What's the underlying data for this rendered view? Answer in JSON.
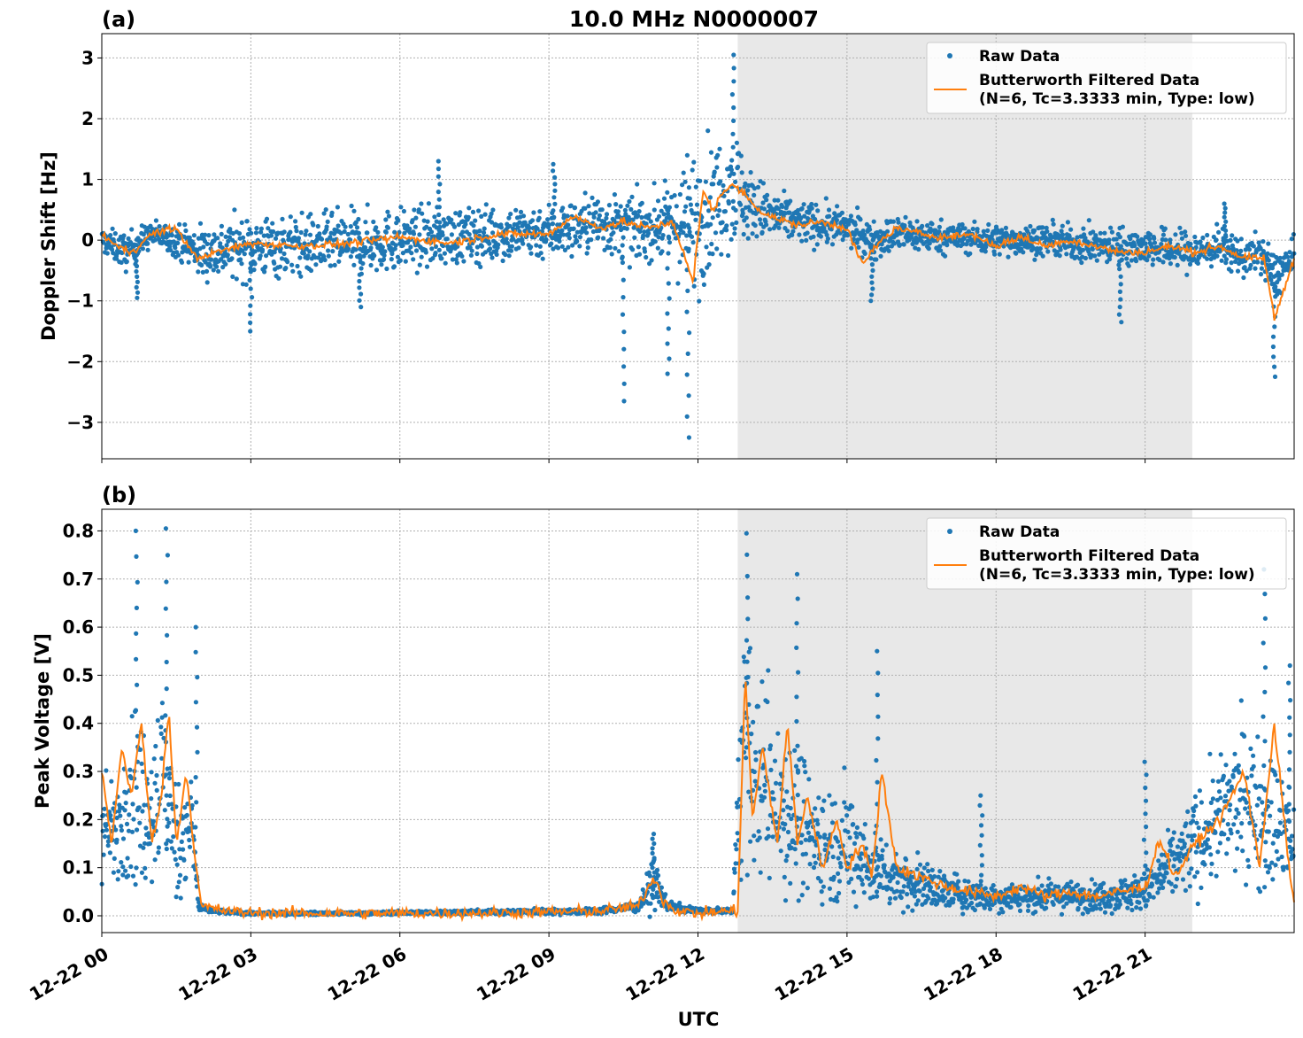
{
  "figure_title": "10.0 MHz N0000007",
  "xlabel": "UTC",
  "colors": {
    "raw": "#1f77b4",
    "filtered": "#ff7f0e",
    "shade": "#e8e8e8",
    "grid": "#b0b0b0"
  },
  "legend": {
    "raw": "Raw Data",
    "filtered_line1": "Butterworth Filtered Data",
    "filtered_line2": "(N=6, Tc=3.3333 min, Type: low)"
  },
  "x_tick_labels": [
    "12-22 00",
    "12-22 03",
    "12-22 06",
    "12-22 09",
    "12-22 12",
    "12-22 15",
    "12-22 18",
    "12-22 21"
  ],
  "chart_data": [
    {
      "type": "scatter",
      "panel": "(a)",
      "ylabel": "Doppler Shift [Hz]",
      "x_unit": "hours UTC on 12-22",
      "xlim": [
        0,
        24
      ],
      "ylim": [
        -3.6,
        3.4
      ],
      "yticks": [
        -3,
        -2,
        -1,
        0,
        1,
        2,
        3
      ],
      "ytick_labels": [
        "−3",
        "−2",
        "−1",
        "0",
        "1",
        "2",
        "3"
      ],
      "grid": true,
      "legend_position": "top-right",
      "shaded_interval": [
        12.8,
        21.95
      ],
      "series": [
        {
          "name": "Raw Data",
          "style": "points",
          "x": [
            0,
            0.25,
            0.5,
            1,
            1.5,
            2,
            3,
            4,
            5,
            6,
            7,
            8,
            9,
            9.5,
            10,
            10.5,
            11,
            11.5,
            11.8,
            12,
            12.3,
            12.5,
            12.75,
            13,
            13.5,
            14,
            15,
            15.5,
            16,
            17,
            18,
            19,
            20,
            21,
            22,
            22.5,
            23,
            23.3,
            23.6,
            24
          ],
          "y": [
            0,
            -0.1,
            -0.2,
            0.1,
            0,
            -0.2,
            -0.1,
            -0.1,
            -0.05,
            0,
            0.05,
            0.1,
            0.15,
            0.2,
            0.3,
            0.2,
            0.2,
            0.3,
            0.2,
            0.4,
            0.6,
            0.8,
            0.9,
            0.6,
            0.4,
            0.3,
            0.2,
            0,
            0.1,
            0.05,
            0,
            0,
            -0.1,
            -0.1,
            -0.2,
            -0.1,
            -0.3,
            -0.2,
            -0.6,
            -0.3
          ],
          "spread": [
            0.2,
            0.25,
            0.3,
            0.2,
            0.25,
            0.45,
            0.5,
            0.5,
            0.5,
            0.5,
            0.45,
            0.45,
            0.45,
            0.45,
            0.5,
            0.5,
            0.5,
            0.6,
            1.2,
            1.2,
            1,
            0.9,
            1,
            0.6,
            0.4,
            0.35,
            0.3,
            0.3,
            0.3,
            0.25,
            0.25,
            0.25,
            0.3,
            0.3,
            0.35,
            0.3,
            0.3,
            0.3,
            0.4,
            0.3
          ],
          "spikes": [
            [
              0.7,
              -0.95
            ],
            [
              3,
              -1.5
            ],
            [
              5.2,
              -1.1
            ],
            [
              6.8,
              1.3
            ],
            [
              9.1,
              1.25
            ],
            [
              10.5,
              -2.65
            ],
            [
              11.4,
              -2.2
            ],
            [
              11.8,
              -3.25
            ],
            [
              12.7,
              3.05
            ],
            [
              15.5,
              -1
            ],
            [
              20.5,
              -1.35
            ],
            [
              22.6,
              0.6
            ],
            [
              23.6,
              -2.25
            ]
          ]
        },
        {
          "name": "Butterworth Filtered Data\n(N=6, Tc=3.3333 min, Type: low)",
          "style": "line",
          "x": [
            0,
            0.3,
            0.6,
            1,
            1.5,
            1.9,
            2.3,
            3,
            4,
            5,
            6,
            7,
            8,
            9,
            9.5,
            10,
            10.5,
            11,
            11.5,
            11.9,
            12.1,
            12.3,
            12.5,
            12.75,
            13,
            13.3,
            13.6,
            14,
            14.5,
            15,
            15.3,
            15.7,
            16,
            16.5,
            17,
            17.5,
            18,
            18.5,
            19,
            19.5,
            20,
            20.5,
            21,
            21.5,
            22,
            22.5,
            23,
            23.4,
            23.6,
            24
          ],
          "y": [
            0.1,
            -0.1,
            -0.2,
            0.1,
            0.2,
            -0.3,
            -0.2,
            -0.05,
            -0.1,
            -0.05,
            0.05,
            -0.05,
            0.1,
            0.1,
            0.4,
            0.2,
            0.3,
            0.2,
            0.3,
            -0.7,
            0.8,
            0.5,
            0.8,
            0.9,
            0.7,
            0.45,
            0.35,
            0.25,
            0.3,
            0.2,
            -0.4,
            0,
            0.2,
            0.1,
            0.05,
            0.1,
            -0.1,
            0.05,
            -0.1,
            0,
            -0.1,
            -0.2,
            -0.2,
            -0.1,
            -0.2,
            -0.1,
            -0.3,
            -0.3,
            -1.3,
            -0.3
          ]
        }
      ]
    },
    {
      "type": "scatter",
      "panel": "(b)",
      "ylabel": "Peak Voltage [V]",
      "x_unit": "hours UTC on 12-22",
      "xlim": [
        0,
        24
      ],
      "ylim": [
        -0.035,
        0.845
      ],
      "yticks": [
        0.0,
        0.1,
        0.2,
        0.3,
        0.4,
        0.5,
        0.6,
        0.7,
        0.8
      ],
      "ytick_labels": [
        "0.0",
        "0.1",
        "0.2",
        "0.3",
        "0.4",
        "0.5",
        "0.6",
        "0.7",
        "0.8"
      ],
      "grid": true,
      "legend_position": "top-right",
      "shaded_interval": [
        12.8,
        21.95
      ],
      "series": [
        {
          "name": "Raw Data",
          "style": "points",
          "x": [
            0,
            0.3,
            0.6,
            0.9,
            1.2,
            1.5,
            1.8,
            1.95,
            2.2,
            3,
            5,
            8,
            10,
            10.8,
            11.1,
            11.4,
            12,
            12.7,
            12.9,
            13.1,
            13.5,
            14,
            14.5,
            15,
            15.5,
            16,
            17,
            18,
            19,
            20,
            21,
            21.5,
            22,
            22.5,
            23,
            23.5,
            24
          ],
          "y": [
            0.2,
            0.15,
            0.3,
            0.2,
            0.3,
            0.15,
            0.2,
            0.02,
            0.01,
            0.005,
            0.005,
            0.008,
            0.01,
            0.02,
            0.07,
            0.02,
            0.01,
            0.01,
            0.4,
            0.3,
            0.25,
            0.2,
            0.15,
            0.15,
            0.1,
            0.08,
            0.05,
            0.04,
            0.04,
            0.04,
            0.05,
            0.1,
            0.15,
            0.2,
            0.25,
            0.2,
            0.15
          ],
          "spread": [
            0.12,
            0.1,
            0.2,
            0.15,
            0.2,
            0.12,
            0.12,
            0.01,
            0.005,
            0.003,
            0.003,
            0.005,
            0.006,
            0.01,
            0.05,
            0.01,
            0.005,
            0.005,
            0.25,
            0.2,
            0.2,
            0.15,
            0.12,
            0.12,
            0.08,
            0.06,
            0.04,
            0.03,
            0.03,
            0.03,
            0.04,
            0.07,
            0.1,
            0.12,
            0.15,
            0.15,
            0.1
          ],
          "spikes": [
            [
              0.7,
              0.8
            ],
            [
              1.3,
              0.805
            ],
            [
              1.9,
              0.6
            ],
            [
              11.1,
              0.17
            ],
            [
              13.0,
              0.795
            ],
            [
              14.0,
              0.71
            ],
            [
              15.6,
              0.55
            ],
            [
              17.7,
              0.25
            ],
            [
              21.0,
              0.32
            ],
            [
              23.4,
              0.72
            ],
            [
              23.9,
              0.52
            ]
          ]
        },
        {
          "name": "Butterworth Filtered Data\n(N=6, Tc=3.3333 min, Type: low)",
          "style": "line",
          "x": [
            0,
            0.2,
            0.4,
            0.6,
            0.8,
            1,
            1.2,
            1.35,
            1.5,
            1.7,
            1.9,
            2,
            2.5,
            3,
            5,
            8,
            10,
            10.8,
            11,
            11.15,
            11.3,
            11.6,
            12,
            12.6,
            12.8,
            12.95,
            13.1,
            13.3,
            13.6,
            13.8,
            14,
            14.2,
            14.5,
            14.8,
            15,
            15.3,
            15.5,
            15.7,
            16,
            16.5,
            17,
            17.5,
            18,
            18.5,
            19,
            19.5,
            20,
            20.5,
            21,
            21.3,
            21.6,
            22,
            22.5,
            23,
            23.3,
            23.6,
            23.9,
            24
          ],
          "y": [
            0.3,
            0.15,
            0.35,
            0.25,
            0.4,
            0.15,
            0.25,
            0.43,
            0.15,
            0.3,
            0.1,
            0.02,
            0.01,
            0.006,
            0.005,
            0.006,
            0.01,
            0.02,
            0.06,
            0.08,
            0.03,
            0.01,
            0.005,
            0.01,
            0.01,
            0.5,
            0.2,
            0.35,
            0.15,
            0.4,
            0.15,
            0.25,
            0.1,
            0.2,
            0.1,
            0.15,
            0.08,
            0.3,
            0.1,
            0.08,
            0.06,
            0.05,
            0.04,
            0.06,
            0.04,
            0.05,
            0.04,
            0.05,
            0.06,
            0.16,
            0.08,
            0.15,
            0.2,
            0.3,
            0.1,
            0.4,
            0.1,
            0.02
          ]
        }
      ]
    }
  ]
}
